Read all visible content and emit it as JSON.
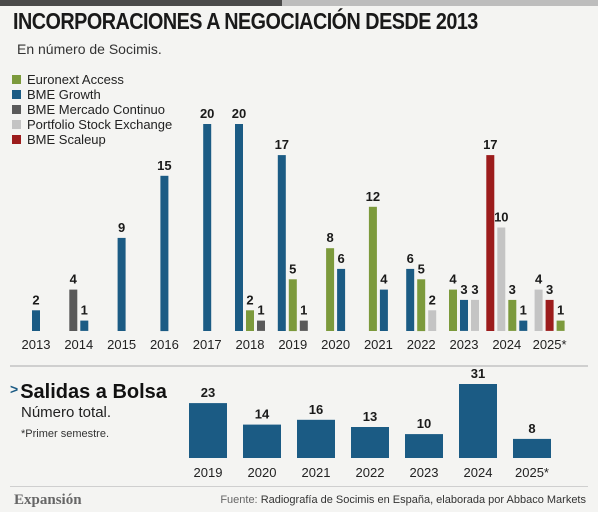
{
  "header": {
    "title": "INCORPORACIONES A NEGOCIACIÓN DESDE 2013",
    "subtitle": "En número de Socimis."
  },
  "colors": {
    "euronext_access": "#7c9a3c",
    "bme_growth": "#1b5b84",
    "bme_mercado_continuo": "#5a5a5a",
    "portfolio_stock_exchange": "#c4c4c4",
    "bme_scaleup": "#9c1c1c"
  },
  "chart_data": [
    {
      "type": "bar",
      "title": "INCORPORACIONES A NEGOCIACIÓN DESDE 2013",
      "subtitle": "En número de Socimis.",
      "categories": [
        "2013",
        "2014",
        "2015",
        "2016",
        "2017",
        "2018",
        "2019",
        "2020",
        "2021",
        "2022",
        "2023",
        "2024",
        "2025*"
      ],
      "ylim": [
        0,
        20
      ],
      "legend_position": "top-left",
      "grid": false,
      "series": [
        {
          "name": "Euronext Access",
          "color": "#7c9a3c",
          "values": [
            null,
            null,
            null,
            null,
            null,
            2,
            5,
            8,
            12,
            5,
            4,
            3,
            1
          ]
        },
        {
          "name": "BME Growth",
          "color": "#1b5b84",
          "values": [
            2,
            1,
            9,
            15,
            20,
            20,
            17,
            6,
            4,
            6,
            3,
            1,
            null
          ]
        },
        {
          "name": "BME Mercado Continuo",
          "color": "#5a5a5a",
          "values": [
            null,
            4,
            null,
            null,
            null,
            1,
            1,
            null,
            null,
            null,
            null,
            null,
            null
          ]
        },
        {
          "name": "Portfolio Stock Exchange",
          "color": "#c4c4c4",
          "values": [
            null,
            null,
            null,
            null,
            null,
            null,
            null,
            null,
            null,
            2,
            3,
            10,
            4
          ]
        },
        {
          "name": "BME Scaleup",
          "color": "#9c1c1c",
          "values": [
            null,
            null,
            null,
            null,
            null,
            null,
            null,
            null,
            null,
            null,
            null,
            17,
            3
          ]
        }
      ],
      "bars": [
        {
          "cat": 0,
          "series": 1,
          "value": 2
        },
        {
          "cat": 1,
          "series": 2,
          "value": 4
        },
        {
          "cat": 1,
          "series": 1,
          "value": 1
        },
        {
          "cat": 2,
          "series": 1,
          "value": 9
        },
        {
          "cat": 3,
          "series": 1,
          "value": 15
        },
        {
          "cat": 4,
          "series": 1,
          "value": 20
        },
        {
          "cat": 5,
          "series": 1,
          "value": 20
        },
        {
          "cat": 5,
          "series": 0,
          "value": 2
        },
        {
          "cat": 5,
          "series": 2,
          "value": 1
        },
        {
          "cat": 6,
          "series": 1,
          "value": 17
        },
        {
          "cat": 6,
          "series": 0,
          "value": 5
        },
        {
          "cat": 6,
          "series": 2,
          "value": 1
        },
        {
          "cat": 7,
          "series": 0,
          "value": 8
        },
        {
          "cat": 7,
          "series": 1,
          "value": 6
        },
        {
          "cat": 8,
          "series": 0,
          "value": 12
        },
        {
          "cat": 8,
          "series": 1,
          "value": 4
        },
        {
          "cat": 9,
          "series": 1,
          "value": 6
        },
        {
          "cat": 9,
          "series": 0,
          "value": 5
        },
        {
          "cat": 9,
          "series": 3,
          "value": 2
        },
        {
          "cat": 10,
          "series": 0,
          "value": 4
        },
        {
          "cat": 10,
          "series": 1,
          "value": 3
        },
        {
          "cat": 10,
          "series": 3,
          "value": 3
        },
        {
          "cat": 11,
          "series": 4,
          "value": 17
        },
        {
          "cat": 11,
          "series": 3,
          "value": 10
        },
        {
          "cat": 11,
          "series": 0,
          "value": 3
        },
        {
          "cat": 11,
          "series": 1,
          "value": 1
        },
        {
          "cat": 12,
          "series": 3,
          "value": 4
        },
        {
          "cat": 12,
          "series": 4,
          "value": 3
        },
        {
          "cat": 12,
          "series": 0,
          "value": 1
        }
      ]
    },
    {
      "type": "bar",
      "title": "Salidas a Bolsa",
      "subtitle": "Número total.",
      "categories": [
        "2019",
        "2020",
        "2021",
        "2022",
        "2023",
        "2024",
        "2025*"
      ],
      "values": [
        23,
        14,
        16,
        13,
        10,
        31,
        8
      ],
      "color": "#1b5b84",
      "ylim": [
        0,
        31
      ],
      "grid": false
    }
  ],
  "legend": [
    {
      "label": "Euronext Access",
      "color": "#7c9a3c"
    },
    {
      "label": "BME Growth",
      "color": "#1b5b84"
    },
    {
      "label": "BME Mercado Continuo",
      "color": "#5a5a5a"
    },
    {
      "label": "Portfolio Stock Exchange",
      "color": "#c4c4c4"
    },
    {
      "label": "BME Scaleup",
      "color": "#9c1c1c"
    }
  ],
  "exits": {
    "title": "Salidas a Bolsa",
    "subtitle": "Número total.",
    "note": "*Primer semestre."
  },
  "footer": {
    "brand": "Expansión",
    "source_key": "Fuente:",
    "source_text": "Radiografía de Socimis en España, elaborada por Abbaco Markets"
  }
}
